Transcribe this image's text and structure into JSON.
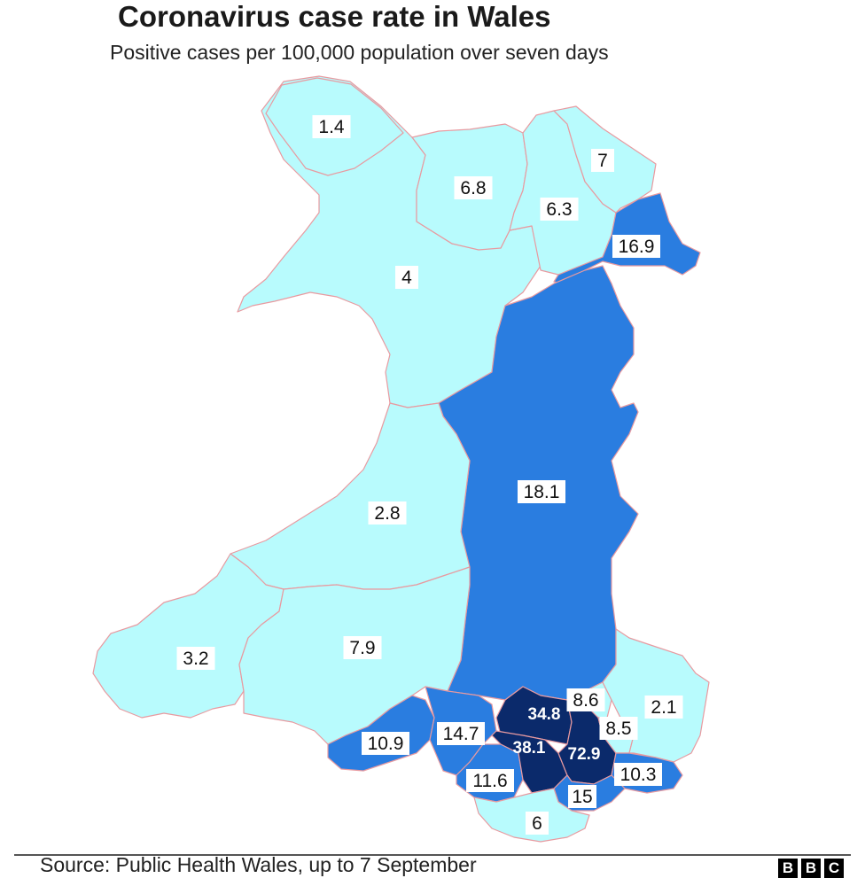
{
  "title": "Coronavirus case rate in Wales",
  "subtitle": "Positive cases per 100,000 population over seven days",
  "source": "Source: Public Health Wales, up to 7 September",
  "logo": [
    "B",
    "B",
    "C"
  ],
  "colors": {
    "low": "#b8fbfd",
    "mid": "#2a7de0",
    "high": "#0b2a6b",
    "border": "#e89aa0"
  },
  "areas": [
    {
      "id": "anglesey",
      "value": "1.4",
      "band": "low"
    },
    {
      "id": "conwy",
      "value": "6.8",
      "band": "low"
    },
    {
      "id": "denbighshire",
      "value": "6.3",
      "band": "low"
    },
    {
      "id": "flintshire",
      "value": "7",
      "band": "low"
    },
    {
      "id": "wrexham",
      "value": "16.9",
      "band": "mid"
    },
    {
      "id": "gwynedd",
      "value": "4",
      "band": "low"
    },
    {
      "id": "powys",
      "value": "18.1",
      "band": "mid"
    },
    {
      "id": "ceredigion",
      "value": "2.8",
      "band": "low"
    },
    {
      "id": "pembrokeshire",
      "value": "3.2",
      "band": "low"
    },
    {
      "id": "carmarthenshire",
      "value": "7.9",
      "band": "low"
    },
    {
      "id": "swansea",
      "value": "10.9",
      "band": "mid"
    },
    {
      "id": "neath-port-talbot",
      "value": "14.7",
      "band": "mid"
    },
    {
      "id": "bridgend",
      "value": "11.6",
      "band": "mid"
    },
    {
      "id": "merthyr-tydfil",
      "value": "34.8",
      "band": "high"
    },
    {
      "id": "rhondda-cynon-taf",
      "value": "38.1",
      "band": "high"
    },
    {
      "id": "caerphilly",
      "value": "72.9",
      "band": "high"
    },
    {
      "id": "blaenau-gwent",
      "value": "8.6",
      "band": "low"
    },
    {
      "id": "torfaen",
      "value": "8.5",
      "band": "low"
    },
    {
      "id": "monmouthshire",
      "value": "2.1",
      "band": "low"
    },
    {
      "id": "newport",
      "value": "10.3",
      "band": "mid"
    },
    {
      "id": "cardiff",
      "value": "15",
      "band": "mid"
    },
    {
      "id": "vale-of-glamorgan",
      "value": "6",
      "band": "low"
    }
  ]
}
